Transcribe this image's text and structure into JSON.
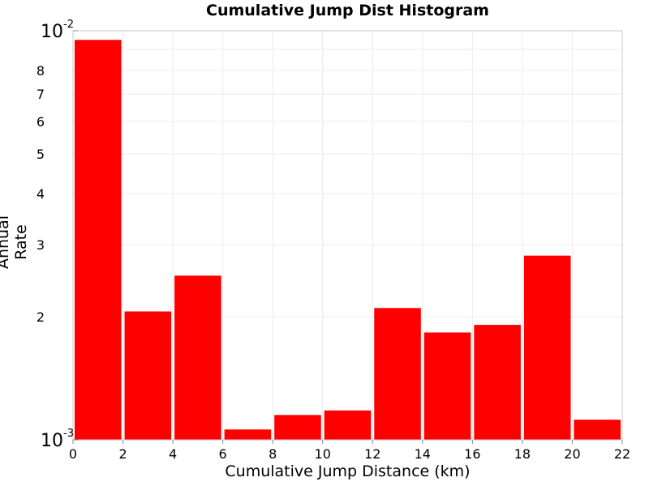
{
  "chart_data": {
    "type": "bar",
    "title": "Cumulative Jump Dist Histogram",
    "xlabel": "Cumulative Jump Distance (km)",
    "ylabel": "Annual Rate",
    "yscale": "log",
    "ylim": [
      0.001,
      0.01
    ],
    "xlim": [
      0,
      22
    ],
    "grid": true,
    "x_ticks": [
      "0",
      "2",
      "4",
      "6",
      "8",
      "10",
      "12",
      "14",
      "16",
      "18",
      "20",
      "22"
    ],
    "y_ticks": [
      {
        "value": 0.001,
        "label": "10",
        "exp": "-3"
      },
      {
        "value": 0.002,
        "label": "2",
        "exp": ""
      },
      {
        "value": 0.003,
        "label": "3",
        "exp": ""
      },
      {
        "value": 0.004,
        "label": "4",
        "exp": ""
      },
      {
        "value": 0.005,
        "label": "5",
        "exp": ""
      },
      {
        "value": 0.006,
        "label": "6",
        "exp": ""
      },
      {
        "value": 0.007,
        "label": "7",
        "exp": ""
      },
      {
        "value": 0.008,
        "label": "8",
        "exp": ""
      },
      {
        "value": 0.01,
        "label": "10",
        "exp": "-2"
      }
    ],
    "bin_width": 2,
    "bar_color": "#ff0000",
    "categories": [
      1,
      3,
      5,
      7,
      9,
      11,
      13,
      15,
      17,
      19,
      21
    ],
    "values": [
      0.0095,
      0.00206,
      0.00252,
      0.00106,
      0.00115,
      0.00118,
      0.0021,
      0.00183,
      0.00191,
      0.00282,
      0.00112
    ]
  }
}
